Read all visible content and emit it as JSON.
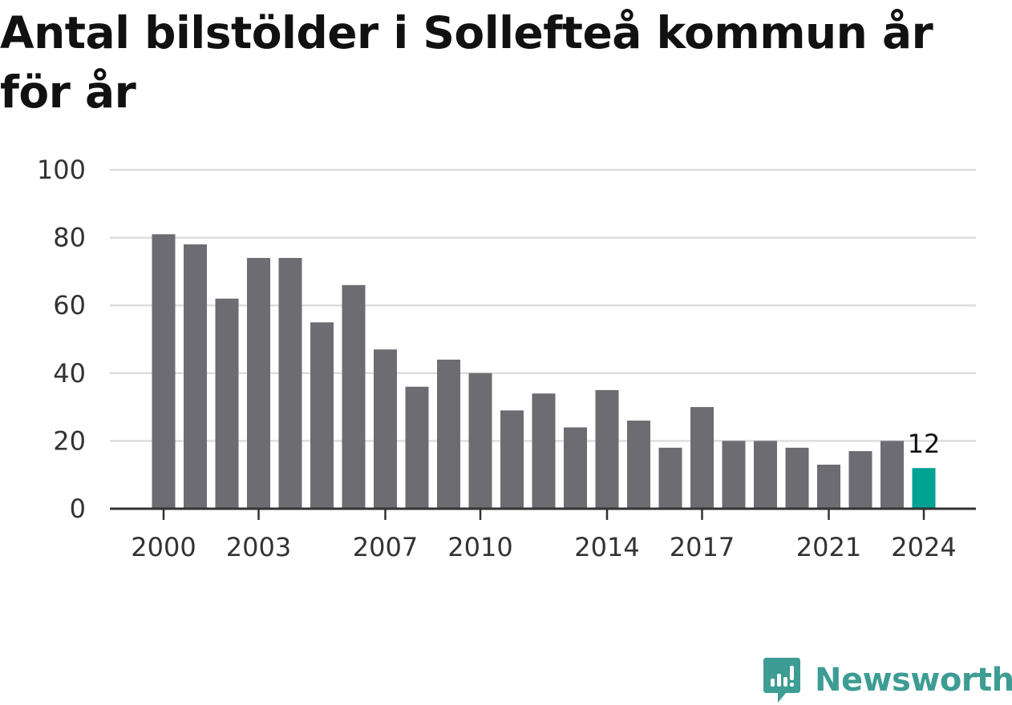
{
  "title": "Antal bilstölder i Sollefteå kommun år för år",
  "brand": {
    "name": "Newsworthy",
    "icon": "newsworthy-logo-icon",
    "color": "#3d9c94"
  },
  "chart_data": {
    "type": "bar",
    "categories": [
      "2000",
      "2001",
      "2002",
      "2003",
      "2004",
      "2005",
      "2006",
      "2007",
      "2008",
      "2009",
      "2010",
      "2011",
      "2012",
      "2013",
      "2014",
      "2015",
      "2016",
      "2017",
      "2018",
      "2019",
      "2020",
      "2021",
      "2022",
      "2023",
      "2024"
    ],
    "values": [
      81,
      78,
      62,
      74,
      74,
      55,
      66,
      47,
      36,
      44,
      40,
      29,
      34,
      24,
      35,
      26,
      18,
      30,
      20,
      20,
      18,
      13,
      17,
      20,
      12
    ],
    "x_tick_labels": [
      "2000",
      "2003",
      "2007",
      "2010",
      "2014",
      "2017",
      "2021",
      "2024"
    ],
    "y_ticks": [
      0,
      20,
      40,
      60,
      80,
      100
    ],
    "ylim": [
      0,
      100
    ],
    "grid": true,
    "highlight": {
      "category": "2024",
      "label": "12"
    },
    "colors": {
      "bar": "#6d6c72",
      "highlight": "#00a293",
      "grid": "#dddddd",
      "axis": "#333333"
    }
  }
}
